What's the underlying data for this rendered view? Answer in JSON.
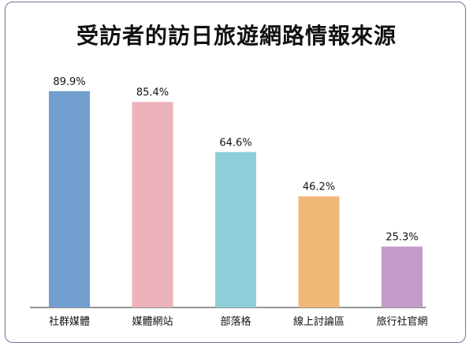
{
  "chart_data": {
    "type": "bar",
    "title": "受訪者的訪日旅遊網路情報來源",
    "xlabel": "",
    "ylabel": "",
    "grid": false,
    "ylim": [
      0,
      100
    ],
    "categories": [
      "社群媒體",
      "媒體網站",
      "部落格",
      "線上討論區",
      "旅行社官網"
    ],
    "values": [
      89.9,
      85.4,
      64.6,
      46.2,
      25.3
    ],
    "value_labels": [
      "89.9%",
      "85.4%",
      "64.6%",
      "46.2%",
      "25.3%"
    ],
    "colors": [
      "#729fcf",
      "#ecb2bb",
      "#8ccfd8",
      "#f0b877",
      "#c39bc9"
    ],
    "baseline_color": "#555555"
  }
}
